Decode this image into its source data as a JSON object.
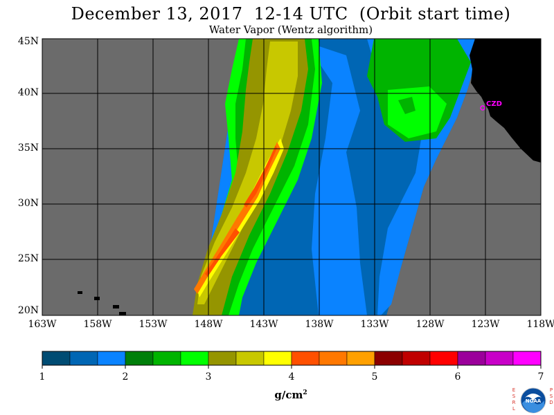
{
  "title": "December 13, 2017  12-14 UTC  (Orbit start time)",
  "subtitle": "Water Vapor (Wentz algorithm)",
  "map": {
    "lon_range": [
      -163,
      -118
    ],
    "lat_range": [
      20,
      45
    ],
    "lat_ticks": [
      "45N",
      "40N",
      "35N",
      "30N",
      "25N",
      "20N"
    ],
    "lon_ticks": [
      "163W",
      "158W",
      "153W",
      "148W",
      "143W",
      "138W",
      "133W",
      "128W",
      "123W",
      "118W"
    ],
    "grid": true,
    "no_data_color": "#6b6b6b",
    "land_color": "#000000",
    "station": {
      "label": "CZD",
      "color": "#ff00ff"
    }
  },
  "colorbar": {
    "colors": [
      "#004c73",
      "#0066b4",
      "#0a83ff",
      "#007f0a",
      "#00b400",
      "#00ff00",
      "#959500",
      "#c8c800",
      "#ffff00",
      "#ff5000",
      "#ff7800",
      "#ffa000",
      "#8b0000",
      "#c00000",
      "#ff0000",
      "#9b009b",
      "#c800c8",
      "#ff00ff"
    ],
    "tick_labels": [
      "1",
      "2",
      "3",
      "4",
      "5",
      "6",
      "7"
    ],
    "unit": "g/cm",
    "unit_exp": "2"
  },
  "logo": {
    "left": [
      "E",
      "S",
      "R",
      "L"
    ],
    "right": [
      "P",
      "S",
      "D"
    ],
    "center": "NOAA"
  }
}
